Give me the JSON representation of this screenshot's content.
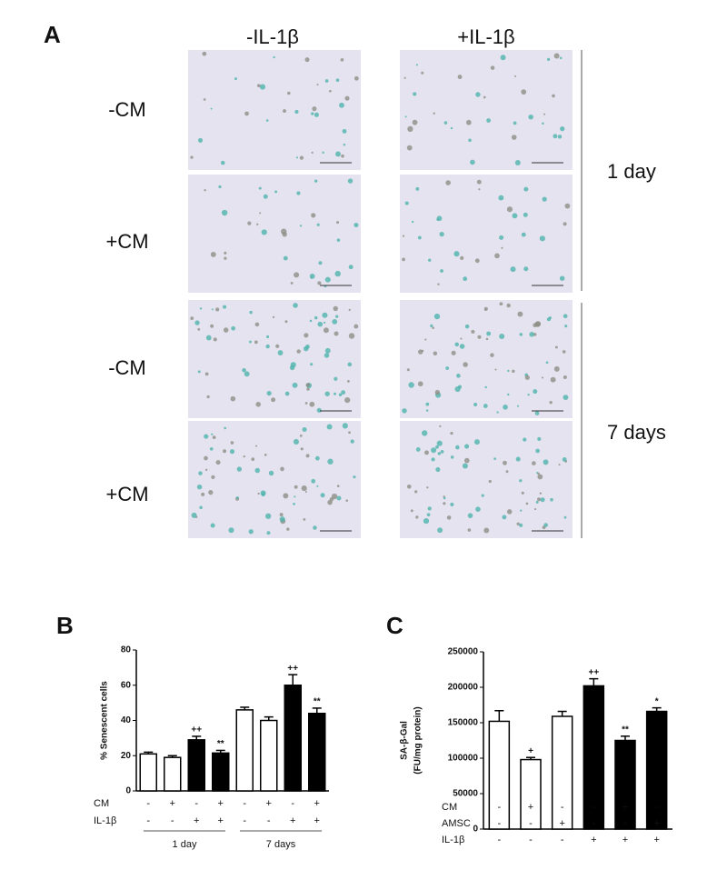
{
  "panel_a": {
    "label": "A",
    "columns": [
      "-IL-1β",
      "+IL-1β"
    ],
    "rows": [
      "-CM",
      "+CM",
      "-CM",
      "+CM"
    ],
    "times": [
      "1 day",
      "7 days"
    ]
  },
  "chart_data": [
    {
      "type": "bar",
      "label": "B",
      "y_label": "% Senescent cells",
      "ylim": [
        0,
        80
      ],
      "yticks": [
        0,
        20,
        40,
        60,
        80
      ],
      "values": [
        21,
        19,
        29,
        21.5,
        46,
        40,
        60,
        44
      ],
      "errors": [
        1,
        1,
        2,
        1.5,
        1.5,
        2,
        6,
        3
      ],
      "bar_colors": [
        "#ffffff",
        "#ffffff",
        "#000000",
        "#000000",
        "#ffffff",
        "#ffffff",
        "#000000",
        "#000000"
      ],
      "value_annotations": [
        null,
        null,
        "++",
        "**",
        null,
        null,
        "++",
        "**"
      ],
      "conditions": [
        {
          "name": "CM",
          "values": [
            "-",
            "+",
            "-",
            "+",
            "-",
            "+",
            "-",
            "+"
          ]
        },
        {
          "name": "IL-1β",
          "values": [
            "-",
            "-",
            "+",
            "+",
            "-",
            "-",
            "+",
            "+"
          ]
        }
      ],
      "groups": [
        "1 day",
        "7 days"
      ]
    },
    {
      "type": "bar",
      "label": "C",
      "y_label": [
        "SA-β-Gal",
        "(FU/mg protein)"
      ],
      "ylim": [
        0,
        250000
      ],
      "yticks": [
        0,
        50000,
        100000,
        150000,
        200000,
        250000
      ],
      "values": [
        152000,
        98000,
        159000,
        202000,
        125000,
        166000
      ],
      "errors": [
        15000,
        3000,
        7000,
        10000,
        6000,
        5000
      ],
      "bar_colors": [
        "#ffffff",
        "#ffffff",
        "#ffffff",
        "#000000",
        "#000000",
        "#000000"
      ],
      "value_annotations": [
        null,
        "+",
        null,
        "++",
        "**",
        "*"
      ],
      "conditions": [
        {
          "name": "CM",
          "values": [
            "-",
            "+",
            "-",
            "-",
            "+",
            "-"
          ]
        },
        {
          "name": "AMSC",
          "values": [
            "-",
            "-",
            "+",
            "-",
            "-",
            "+"
          ]
        },
        {
          "name": "IL-1β",
          "values": [
            "-",
            "-",
            "-",
            "+",
            "+",
            "+"
          ]
        }
      ]
    }
  ]
}
